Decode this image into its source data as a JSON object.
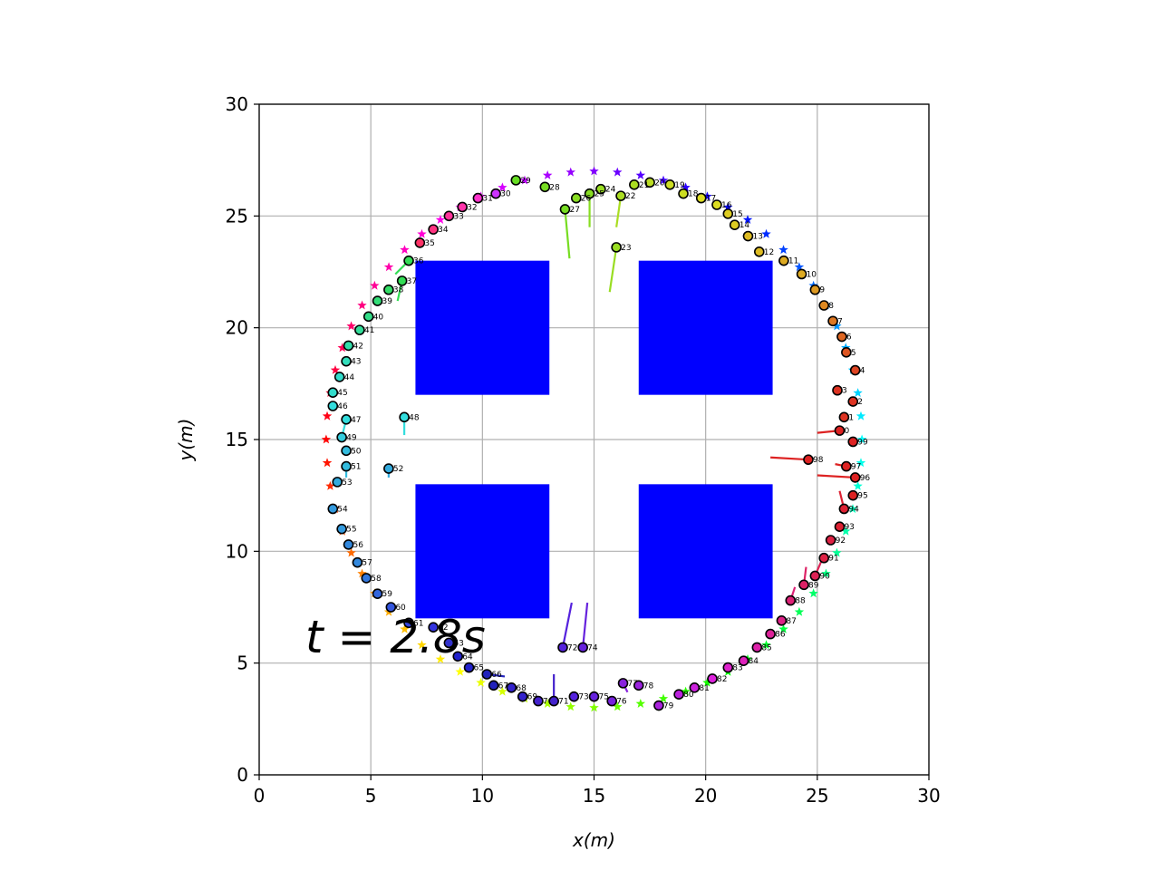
{
  "chart_data": {
    "type": "scatter",
    "xlabel": "x(m)",
    "ylabel": "y(m)",
    "xlim": [
      0,
      30
    ],
    "ylim": [
      0,
      30
    ],
    "xticks": [
      "0",
      "5",
      "10",
      "15",
      "20",
      "25",
      "30"
    ],
    "yticks": [
      "0",
      "5",
      "10",
      "15",
      "20",
      "25",
      "30"
    ],
    "grid": true,
    "annotation": "t = 2.8s",
    "obstacles": [
      {
        "x": [
          7,
          13
        ],
        "y": [
          17,
          23
        ],
        "color": "#0000ff"
      },
      {
        "x": [
          17,
          23
        ],
        "y": [
          17,
          23
        ],
        "color": "#0000ff"
      },
      {
        "x": [
          7,
          13
        ],
        "y": [
          7,
          13
        ],
        "color": "#0000ff"
      },
      {
        "x": [
          17,
          23
        ],
        "y": [
          7,
          13
        ],
        "color": "#0000ff"
      }
    ],
    "goal_ring": {
      "center": [
        15,
        15
      ],
      "radius": 12,
      "count": 72,
      "marker": "star"
    },
    "agents": [
      {
        "id": "30",
        "x": 10.6,
        "y": 26.0,
        "tx": 10.6,
        "ty": 26.0,
        "fill": "#cc33ff"
      },
      {
        "id": "31",
        "x": 9.8,
        "y": 25.8,
        "tx": 9.8,
        "ty": 25.8,
        "fill": "#ff33cc"
      },
      {
        "id": "32",
        "x": 9.1,
        "y": 25.4,
        "tx": 9.1,
        "ty": 25.4,
        "fill": "#ff33aa"
      },
      {
        "id": "33",
        "x": 8.5,
        "y": 25.0,
        "tx": 8.5,
        "ty": 25.0,
        "fill": "#ff3399"
      },
      {
        "id": "34",
        "x": 7.8,
        "y": 24.4,
        "tx": 7.8,
        "ty": 24.4,
        "fill": "#ff3380"
      },
      {
        "id": "35",
        "x": 7.2,
        "y": 23.8,
        "tx": 7.2,
        "ty": 23.8,
        "fill": "#ff3366"
      },
      {
        "id": "36",
        "x": 6.7,
        "y": 23.0,
        "tx": 6.1,
        "ty": 22.4,
        "fill": "#33dd55"
      },
      {
        "id": "37",
        "x": 6.4,
        "y": 22.1,
        "tx": 6.2,
        "ty": 21.2,
        "fill": "#33dd55"
      },
      {
        "id": "38",
        "x": 5.8,
        "y": 21.7,
        "tx": 5.8,
        "ty": 21.7,
        "fill": "#33dd66"
      },
      {
        "id": "39",
        "x": 5.3,
        "y": 21.2,
        "tx": 5.3,
        "ty": 21.2,
        "fill": "#33dd77"
      },
      {
        "id": "40",
        "x": 4.9,
        "y": 20.5,
        "tx": 4.9,
        "ty": 20.5,
        "fill": "#33dd88"
      },
      {
        "id": "41",
        "x": 4.5,
        "y": 19.9,
        "tx": 4.5,
        "ty": 19.9,
        "fill": "#33dd99"
      },
      {
        "id": "42",
        "x": 4.0,
        "y": 19.2,
        "tx": 4.0,
        "ty": 19.2,
        "fill": "#33ddaa"
      },
      {
        "id": "43",
        "x": 3.9,
        "y": 18.5,
        "tx": 3.9,
        "ty": 18.5,
        "fill": "#33ddbb"
      },
      {
        "id": "44",
        "x": 3.6,
        "y": 17.8,
        "tx": 3.6,
        "ty": 17.8,
        "fill": "#33ddcc"
      },
      {
        "id": "45",
        "x": 3.3,
        "y": 17.1,
        "tx": 3.3,
        "ty": 17.1,
        "fill": "#33ddcc"
      },
      {
        "id": "46",
        "x": 3.3,
        "y": 16.5,
        "tx": 3.3,
        "ty": 16.5,
        "fill": "#33dddd"
      },
      {
        "id": "47",
        "x": 3.9,
        "y": 15.9,
        "tx": 3.7,
        "ty": 15.1,
        "fill": "#33dddd"
      },
      {
        "id": "48",
        "x": 6.5,
        "y": 16.0,
        "tx": 6.5,
        "ty": 15.2,
        "fill": "#33dddd"
      },
      {
        "id": "49",
        "x": 3.7,
        "y": 15.1,
        "tx": 3.7,
        "ty": 15.1,
        "fill": "#33ccdd"
      },
      {
        "id": "50",
        "x": 3.9,
        "y": 14.5,
        "tx": 3.9,
        "ty": 14.5,
        "fill": "#33bbdd"
      },
      {
        "id": "51",
        "x": 3.9,
        "y": 13.8,
        "tx": 3.9,
        "ty": 13.3,
        "fill": "#33bbdd"
      },
      {
        "id": "52",
        "x": 5.8,
        "y": 13.7,
        "tx": 5.8,
        "ty": 13.3,
        "fill": "#33aadd"
      },
      {
        "id": "53",
        "x": 3.5,
        "y": 13.1,
        "tx": 3.5,
        "ty": 13.1,
        "fill": "#33aadd"
      },
      {
        "id": "54",
        "x": 3.3,
        "y": 11.9,
        "tx": 3.3,
        "ty": 11.9,
        "fill": "#3399dd"
      },
      {
        "id": "55",
        "x": 3.7,
        "y": 11.0,
        "tx": 3.7,
        "ty": 11.0,
        "fill": "#3399dd"
      },
      {
        "id": "56",
        "x": 4.0,
        "y": 10.3,
        "tx": 4.0,
        "ty": 10.3,
        "fill": "#3388dd"
      },
      {
        "id": "57",
        "x": 4.4,
        "y": 9.5,
        "tx": 4.4,
        "ty": 9.5,
        "fill": "#3388dd"
      },
      {
        "id": "58",
        "x": 4.8,
        "y": 8.8,
        "tx": 4.8,
        "ty": 8.8,
        "fill": "#3377dd"
      },
      {
        "id": "59",
        "x": 5.3,
        "y": 8.1,
        "tx": 5.3,
        "ty": 8.1,
        "fill": "#3366dd"
      },
      {
        "id": "60",
        "x": 5.9,
        "y": 7.5,
        "tx": 5.9,
        "ty": 7.5,
        "fill": "#3355dd"
      },
      {
        "id": "61",
        "x": 6.7,
        "y": 6.8,
        "tx": 6.7,
        "ty": 6.8,
        "fill": "#3344dd"
      },
      {
        "id": "62",
        "x": 7.8,
        "y": 6.6,
        "tx": 7.8,
        "ty": 6.6,
        "fill": "#3333dd"
      },
      {
        "id": "63",
        "x": 8.5,
        "y": 5.9,
        "tx": 8.5,
        "ty": 5.9,
        "fill": "#3333cc"
      },
      {
        "id": "64",
        "x": 8.9,
        "y": 5.3,
        "tx": 8.9,
        "ty": 5.3,
        "fill": "#2222cc"
      },
      {
        "id": "65",
        "x": 9.4,
        "y": 4.8,
        "tx": 9.4,
        "ty": 4.8,
        "fill": "#2222cc"
      },
      {
        "id": "66",
        "x": 10.2,
        "y": 4.5,
        "tx": 11.0,
        "ty": 4.4,
        "fill": "#2222bb"
      },
      {
        "id": "67",
        "x": 10.5,
        "y": 4.0,
        "tx": 10.5,
        "ty": 4.0,
        "fill": "#2222bb"
      },
      {
        "id": "68",
        "x": 11.3,
        "y": 3.9,
        "tx": 11.3,
        "ty": 3.9,
        "fill": "#3322cc"
      },
      {
        "id": "69",
        "x": 11.8,
        "y": 3.5,
        "tx": 11.8,
        "ty": 3.5,
        "fill": "#3322cc"
      },
      {
        "id": "70",
        "x": 12.5,
        "y": 3.3,
        "tx": 12.5,
        "ty": 3.3,
        "fill": "#4422cc"
      },
      {
        "id": "71",
        "x": 13.2,
        "y": 3.3,
        "tx": 13.2,
        "ty": 4.5,
        "fill": "#4422cc"
      },
      {
        "id": "72",
        "x": 13.6,
        "y": 5.7,
        "tx": 14.0,
        "ty": 7.7,
        "fill": "#5522dd"
      },
      {
        "id": "73",
        "x": 14.1,
        "y": 3.5,
        "tx": 14.1,
        "ty": 3.5,
        "fill": "#5522dd"
      },
      {
        "id": "74",
        "x": 14.5,
        "y": 5.7,
        "tx": 14.7,
        "ty": 7.7,
        "fill": "#6622dd"
      },
      {
        "id": "75",
        "x": 15.0,
        "y": 3.5,
        "tx": 15.0,
        "ty": 3.5,
        "fill": "#6622dd"
      },
      {
        "id": "76",
        "x": 15.8,
        "y": 3.3,
        "tx": 15.8,
        "ty": 3.3,
        "fill": "#7722dd"
      },
      {
        "id": "77",
        "x": 16.3,
        "y": 4.1,
        "tx": 16.5,
        "ty": 3.7,
        "fill": "#8822dd"
      },
      {
        "id": "78",
        "x": 17.0,
        "y": 4.0,
        "tx": 17.0,
        "ty": 4.0,
        "fill": "#9922dd"
      },
      {
        "id": "79",
        "x": 17.9,
        "y": 3.1,
        "tx": 17.9,
        "ty": 3.1,
        "fill": "#aa22dd"
      },
      {
        "id": "80",
        "x": 18.8,
        "y": 3.6,
        "tx": 18.8,
        "ty": 3.6,
        "fill": "#bb22dd"
      },
      {
        "id": "81",
        "x": 19.5,
        "y": 3.9,
        "tx": 19.5,
        "ty": 3.9,
        "fill": "#cc22dd"
      },
      {
        "id": "82",
        "x": 20.3,
        "y": 4.3,
        "tx": 20.3,
        "ty": 4.3,
        "fill": "#dd22dd"
      },
      {
        "id": "83",
        "x": 21.0,
        "y": 4.8,
        "tx": 21.0,
        "ty": 4.8,
        "fill": "#dd22cc"
      },
      {
        "id": "84",
        "x": 21.7,
        "y": 5.1,
        "tx": 21.7,
        "ty": 5.1,
        "fill": "#dd22bb"
      },
      {
        "id": "85",
        "x": 22.3,
        "y": 5.7,
        "tx": 22.3,
        "ty": 5.7,
        "fill": "#dd22aa"
      },
      {
        "id": "86",
        "x": 22.9,
        "y": 6.3,
        "tx": 22.9,
        "ty": 6.3,
        "fill": "#dd2299"
      },
      {
        "id": "87",
        "x": 23.4,
        "y": 6.9,
        "tx": 23.4,
        "ty": 6.9,
        "fill": "#dd2288"
      },
      {
        "id": "88",
        "x": 23.8,
        "y": 7.8,
        "tx": 24.0,
        "ty": 8.4,
        "fill": "#dd2277"
      },
      {
        "id": "89",
        "x": 24.4,
        "y": 8.5,
        "tx": 24.5,
        "ty": 9.3,
        "fill": "#dd2266"
      },
      {
        "id": "90",
        "x": 24.9,
        "y": 8.9,
        "tx": 25.2,
        "ty": 9.6,
        "fill": "#dd2255"
      },
      {
        "id": "91",
        "x": 25.3,
        "y": 9.7,
        "tx": 25.3,
        "ty": 9.7,
        "fill": "#dd2244"
      },
      {
        "id": "92",
        "x": 25.6,
        "y": 10.5,
        "tx": 25.6,
        "ty": 10.5,
        "fill": "#dd2244"
      },
      {
        "id": "93",
        "x": 26.0,
        "y": 11.1,
        "tx": 26.0,
        "ty": 11.1,
        "fill": "#dd2233"
      },
      {
        "id": "94",
        "x": 26.2,
        "y": 11.9,
        "tx": 26.0,
        "ty": 12.7,
        "fill": "#dd2233"
      },
      {
        "id": "95",
        "x": 26.6,
        "y": 12.5,
        "tx": 26.6,
        "ty": 12.5,
        "fill": "#dd2222"
      },
      {
        "id": "96",
        "x": 26.7,
        "y": 13.3,
        "tx": 25.0,
        "ty": 13.4,
        "fill": "#dd2222"
      },
      {
        "id": "97",
        "x": 26.3,
        "y": 13.8,
        "tx": 25.8,
        "ty": 13.9,
        "fill": "#dd2222"
      },
      {
        "id": "98",
        "x": 24.6,
        "y": 14.1,
        "tx": 22.9,
        "ty": 14.2,
        "fill": "#dd2222"
      },
      {
        "id": "99",
        "x": 26.6,
        "y": 14.9,
        "tx": 26.6,
        "ty": 14.9,
        "fill": "#dd2222"
      },
      {
        "id": "0",
        "x": 26.0,
        "y": 15.4,
        "tx": 25.0,
        "ty": 15.3,
        "fill": "#dd2222"
      },
      {
        "id": "1",
        "x": 26.2,
        "y": 16.0,
        "tx": 26.2,
        "ty": 16.0,
        "fill": "#dd3322"
      },
      {
        "id": "2",
        "x": 26.6,
        "y": 16.7,
        "tx": 26.6,
        "ty": 16.7,
        "fill": "#dd3322"
      },
      {
        "id": "3",
        "x": 25.9,
        "y": 17.2,
        "tx": 25.9,
        "ty": 17.2,
        "fill": "#dd3322"
      },
      {
        "id": "4",
        "x": 26.7,
        "y": 18.1,
        "tx": 26.7,
        "ty": 18.1,
        "fill": "#dd4422"
      },
      {
        "id": "5",
        "x": 26.3,
        "y": 18.9,
        "tx": 26.3,
        "ty": 18.9,
        "fill": "#dd5522"
      },
      {
        "id": "6",
        "x": 26.1,
        "y": 19.6,
        "tx": 26.1,
        "ty": 19.6,
        "fill": "#dd6622"
      },
      {
        "id": "7",
        "x": 25.7,
        "y": 20.3,
        "tx": 25.7,
        "ty": 20.3,
        "fill": "#dd7722"
      },
      {
        "id": "8",
        "x": 25.3,
        "y": 21.0,
        "tx": 25.3,
        "ty": 21.0,
        "fill": "#dd8822"
      },
      {
        "id": "9",
        "x": 24.9,
        "y": 21.7,
        "tx": 24.9,
        "ty": 21.7,
        "fill": "#dd9922"
      },
      {
        "id": "10",
        "x": 24.3,
        "y": 22.4,
        "tx": 24.3,
        "ty": 22.4,
        "fill": "#ddaa22"
      },
      {
        "id": "11",
        "x": 23.5,
        "y": 23.0,
        "tx": 23.5,
        "ty": 23.0,
        "fill": "#ddaa22"
      },
      {
        "id": "12",
        "x": 22.4,
        "y": 23.4,
        "tx": 22.4,
        "ty": 23.4,
        "fill": "#ddbb22"
      },
      {
        "id": "13",
        "x": 21.9,
        "y": 24.1,
        "tx": 21.9,
        "ty": 24.1,
        "fill": "#ddbb22"
      },
      {
        "id": "14",
        "x": 21.3,
        "y": 24.6,
        "tx": 21.3,
        "ty": 24.6,
        "fill": "#ddcc22"
      },
      {
        "id": "15",
        "x": 21.0,
        "y": 25.1,
        "tx": 21.0,
        "ty": 25.1,
        "fill": "#ddcc22"
      },
      {
        "id": "16",
        "x": 20.5,
        "y": 25.5,
        "tx": 20.5,
        "ty": 25.5,
        "fill": "#dddd22"
      },
      {
        "id": "17",
        "x": 19.8,
        "y": 25.8,
        "tx": 19.8,
        "ty": 25.8,
        "fill": "#dddd22"
      },
      {
        "id": "18",
        "x": 19.0,
        "y": 26.0,
        "tx": 19.0,
        "ty": 26.0,
        "fill": "#ccdd22"
      },
      {
        "id": "19",
        "x": 18.4,
        "y": 26.4,
        "tx": 18.4,
        "ty": 26.4,
        "fill": "#ccdd22"
      },
      {
        "id": "20",
        "x": 17.5,
        "y": 26.5,
        "tx": 17.5,
        "ty": 26.5,
        "fill": "#bbdd22"
      },
      {
        "id": "21",
        "x": 16.8,
        "y": 26.4,
        "tx": 16.8,
        "ty": 26.4,
        "fill": "#aadd22"
      },
      {
        "id": "22",
        "x": 16.2,
        "y": 25.9,
        "tx": 16.0,
        "ty": 24.5,
        "fill": "#aadd22"
      },
      {
        "id": "23",
        "x": 16.0,
        "y": 23.6,
        "tx": 15.7,
        "ty": 21.6,
        "fill": "#99dd22"
      },
      {
        "id": "24",
        "x": 15.3,
        "y": 26.2,
        "tx": 15.3,
        "ty": 26.2,
        "fill": "#99dd22"
      },
      {
        "id": "25",
        "x": 14.8,
        "y": 26.0,
        "tx": 14.8,
        "ty": 24.5,
        "fill": "#88dd22"
      },
      {
        "id": "26",
        "x": 14.2,
        "y": 25.8,
        "tx": 14.2,
        "ty": 25.8,
        "fill": "#88dd22"
      },
      {
        "id": "27",
        "x": 13.7,
        "y": 25.3,
        "tx": 13.9,
        "ty": 23.1,
        "fill": "#77dd22"
      },
      {
        "id": "28",
        "x": 12.8,
        "y": 26.3,
        "tx": 12.8,
        "ty": 26.3,
        "fill": "#77dd22"
      },
      {
        "id": "29",
        "x": 11.5,
        "y": 26.6,
        "tx": 11.5,
        "ty": 26.6,
        "fill": "#66dd22"
      }
    ]
  }
}
